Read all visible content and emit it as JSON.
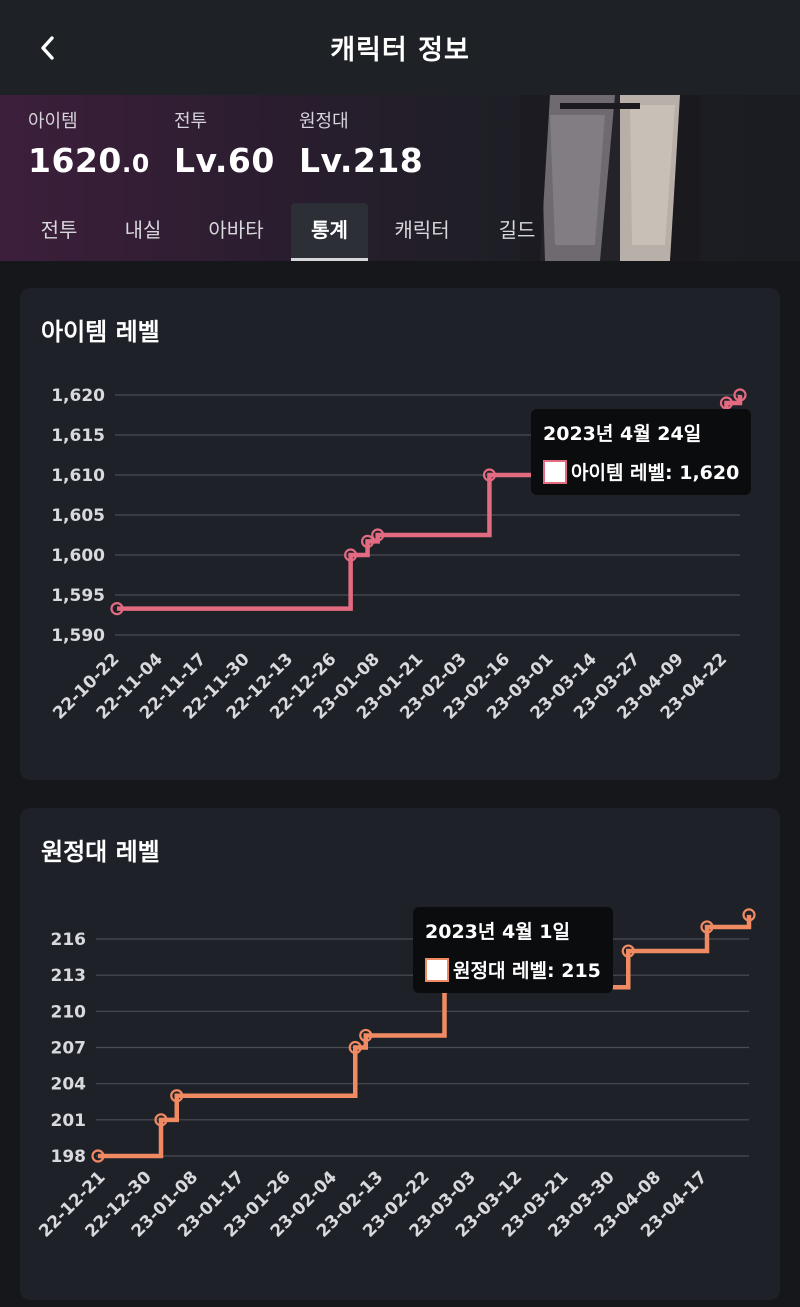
{
  "header": {
    "title": "캐릭터 정보",
    "back_icon": "chevron-left-icon"
  },
  "stats": [
    {
      "label": "아이템",
      "value_main": "1620",
      "value_decimal": ".0"
    },
    {
      "label": "전투",
      "value_main": "Lv.60",
      "value_decimal": ""
    },
    {
      "label": "원정대",
      "value_main": "Lv.218",
      "value_decimal": ""
    }
  ],
  "tabs": [
    {
      "label": "전투",
      "active": false
    },
    {
      "label": "내실",
      "active": false
    },
    {
      "label": "아바타",
      "active": false
    },
    {
      "label": "통계",
      "active": true
    },
    {
      "label": "캐릭터",
      "active": false
    },
    {
      "label": "길드",
      "active": false
    }
  ],
  "colors": {
    "item_line": "#e26b82",
    "expedition_line": "#f08a63",
    "grid": "#4a4d54"
  },
  "chart_data": [
    {
      "type": "line",
      "step": true,
      "title": "아이템 레벨",
      "series": [
        {
          "name": "아이템 레벨",
          "color": "#e26b82"
        }
      ],
      "x_tick_labels": [
        "22-10-22",
        "22-11-04",
        "22-11-17",
        "22-11-30",
        "22-12-13",
        "22-12-26",
        "23-01-08",
        "23-01-21",
        "23-02-03",
        "23-02-16",
        "23-03-01",
        "23-03-14",
        "23-03-27",
        "23-04-09",
        "23-04-22"
      ],
      "y_tick_labels": [
        "1,620",
        "1,615",
        "1,610",
        "1,605",
        "1,600",
        "1,595",
        "1,590"
      ],
      "x_range": [
        "2022-10-22",
        "2023-04-24"
      ],
      "ylim": [
        1590,
        1620
      ],
      "points": [
        {
          "x": "2022-10-22",
          "y": 1593.3
        },
        {
          "x": "2022-12-30",
          "y": 1600
        },
        {
          "x": "2023-01-04",
          "y": 1601.7
        },
        {
          "x": "2023-01-07",
          "y": 1602.5
        },
        {
          "x": "2023-02-09",
          "y": 1610
        },
        {
          "x": "2023-04-20",
          "y": 1619
        },
        {
          "x": "2023-04-24",
          "y": 1620
        }
      ],
      "tooltip": {
        "date": "2023년 4월 24일",
        "label": "아이템 레벨: 1,620"
      }
    },
    {
      "type": "line",
      "step": true,
      "title": "원정대 레벨",
      "series": [
        {
          "name": "원정대 레벨",
          "color": "#f08a63"
        }
      ],
      "x_tick_labels": [
        "22-12-21",
        "22-12-30",
        "23-01-08",
        "23-01-17",
        "23-01-26",
        "23-02-04",
        "23-02-13",
        "23-02-22",
        "23-03-03",
        "23-03-12",
        "23-03-21",
        "23-03-30",
        "23-04-08",
        "23-04-17"
      ],
      "y_tick_labels": [
        "216",
        "213",
        "210",
        "207",
        "204",
        "201",
        "198"
      ],
      "x_range": [
        "2022-12-21",
        "2023-04-24"
      ],
      "ylim": [
        198,
        216
      ],
      "points": [
        {
          "x": "2022-12-21",
          "y": 198
        },
        {
          "x": "2023-01-02",
          "y": 201
        },
        {
          "x": "2023-01-05",
          "y": 203
        },
        {
          "x": "2023-02-08",
          "y": 207
        },
        {
          "x": "2023-02-10",
          "y": 208
        },
        {
          "x": "2023-02-25",
          "y": 212
        },
        {
          "x": "2023-04-01",
          "y": 215
        },
        {
          "x": "2023-04-16",
          "y": 217
        },
        {
          "x": "2023-04-24",
          "y": 218
        }
      ],
      "tooltip": {
        "date": "2023년 4월 1일",
        "label": "원정대 레벨: 215"
      }
    }
  ]
}
